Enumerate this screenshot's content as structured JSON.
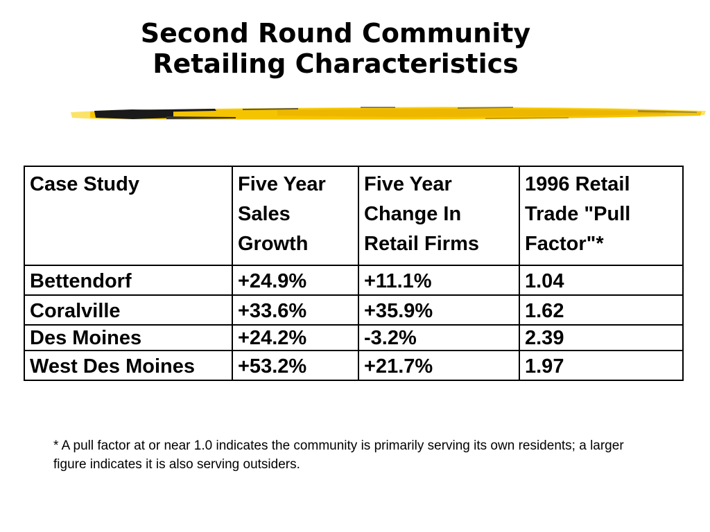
{
  "slide": {
    "title_line1": "Second Round Community",
    "title_line2": "Retailing Characteristics"
  },
  "table": {
    "headers": [
      "Case Study",
      "Five Year Sales Growth",
      "Five Year Change In Retail Firms",
      "1996 Retail Trade \"Pull Factor\"*"
    ],
    "rows": [
      [
        "Bettendorf",
        "+24.9%",
        "+11.1%",
        "1.04"
      ],
      [
        "Coralville",
        "+33.6%",
        "+35.9%",
        "1.62"
      ],
      [
        "Des Moines",
        "+24.2%",
        "-3.2%",
        "2.39"
      ],
      [
        "West Des Moines",
        "+53.2%",
        "+21.7%",
        "1.97"
      ]
    ]
  },
  "footnote": "* A pull factor at or near 1.0 indicates the community is primarily serving its own residents; a larger figure indicates it is also serving outsiders.",
  "colors": {
    "stroke_gold": "#f5c400",
    "stroke_light": "#fbe36a",
    "stroke_dark": "#1a1a1a"
  }
}
